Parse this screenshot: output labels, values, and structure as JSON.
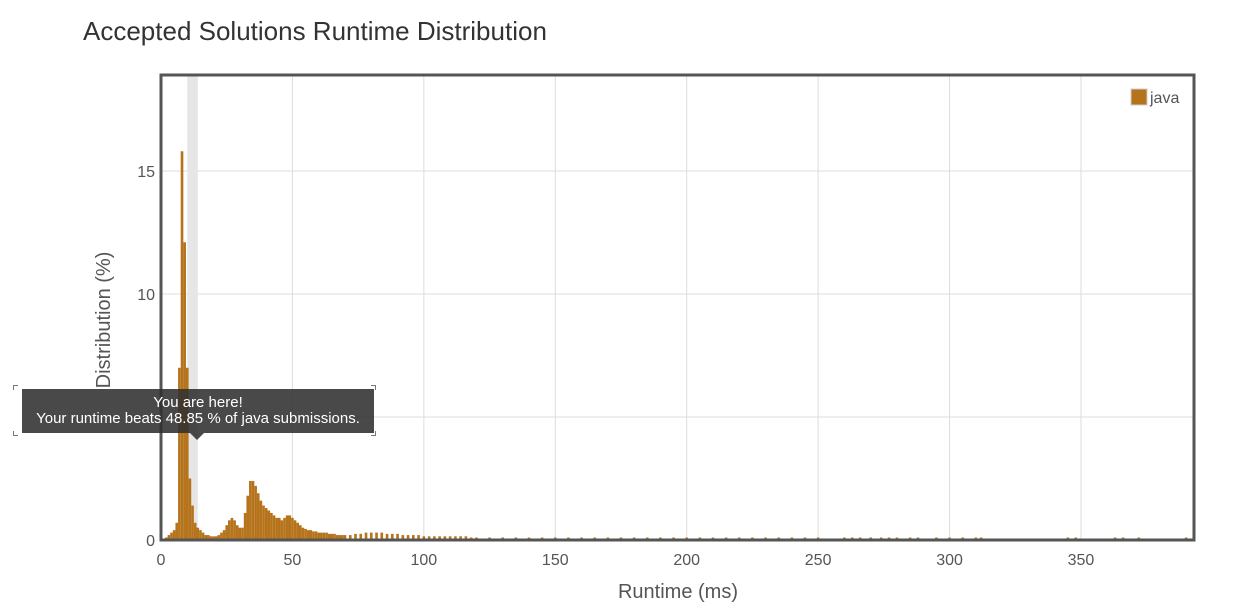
{
  "title": "Accepted Solutions Runtime Distribution",
  "tooltip": {
    "line1": "You are here!",
    "line2": "Your runtime beats 48.85 % of java submissions."
  },
  "colors": {
    "bar": "#b5731c",
    "highlight": "#e6e6e6",
    "grid": "#dddddd",
    "frame": "#555555"
  },
  "chart_data": {
    "type": "bar",
    "title": "Accepted Solutions Runtime Distribution",
    "xlabel": "Runtime (ms)",
    "ylabel": "Distribution (%)",
    "xlim": [
      0,
      393
    ],
    "ylim": [
      0,
      18.9
    ],
    "x_ticks": [
      0,
      50,
      100,
      150,
      200,
      250,
      300,
      350
    ],
    "y_ticks": [
      0,
      5,
      10,
      15
    ],
    "y_tick_labels": [
      "0",
      "",
      "10",
      "15"
    ],
    "grid": true,
    "legend": {
      "position": "top-right",
      "entries": [
        "java"
      ]
    },
    "highlight_range": [
      10,
      14
    ],
    "series": [
      {
        "name": "java",
        "x": [
          2,
          3,
          4,
          5,
          6,
          7,
          8,
          9,
          10,
          11,
          12,
          13,
          14,
          15,
          16,
          17,
          18,
          19,
          20,
          21,
          22,
          23,
          24,
          25,
          26,
          27,
          28,
          29,
          30,
          31,
          32,
          33,
          34,
          35,
          36,
          37,
          38,
          39,
          40,
          41,
          42,
          43,
          44,
          45,
          46,
          47,
          48,
          49,
          50,
          51,
          52,
          53,
          54,
          55,
          56,
          57,
          58,
          59,
          60,
          61,
          62,
          63,
          64,
          65,
          66,
          67,
          68,
          69,
          70,
          72,
          74,
          76,
          78,
          80,
          82,
          84,
          86,
          88,
          90,
          92,
          94,
          96,
          98,
          100,
          102,
          104,
          106,
          108,
          110,
          112,
          114,
          116,
          118,
          120,
          125,
          130,
          135,
          140,
          145,
          150,
          155,
          160,
          165,
          170,
          175,
          180,
          185,
          190,
          195,
          200,
          205,
          210,
          215,
          220,
          225,
          230,
          235,
          240,
          245,
          250,
          260,
          263,
          266,
          270,
          274,
          277,
          280,
          285,
          288,
          295,
          300,
          305,
          310,
          312,
          345,
          348,
          363,
          366,
          372,
          390,
          393
        ],
        "values": [
          0.1,
          0.2,
          0.3,
          0.4,
          0.7,
          7.0,
          15.8,
          12.1,
          7.0,
          2.5,
          1.4,
          0.7,
          0.5,
          0.4,
          0.3,
          0.2,
          0.2,
          0.15,
          0.15,
          0.15,
          0.2,
          0.3,
          0.4,
          0.6,
          0.8,
          0.9,
          0.8,
          0.6,
          0.5,
          0.5,
          1.1,
          1.8,
          2.4,
          2.4,
          2.2,
          1.9,
          1.6,
          1.4,
          1.3,
          1.2,
          1.1,
          1.0,
          0.9,
          0.9,
          0.8,
          0.9,
          1.0,
          1.0,
          0.9,
          0.8,
          0.7,
          0.6,
          0.5,
          0.45,
          0.4,
          0.4,
          0.35,
          0.35,
          0.3,
          0.3,
          0.3,
          0.3,
          0.25,
          0.25,
          0.25,
          0.2,
          0.2,
          0.2,
          0.2,
          0.2,
          0.25,
          0.25,
          0.3,
          0.3,
          0.3,
          0.3,
          0.25,
          0.25,
          0.25,
          0.2,
          0.2,
          0.2,
          0.2,
          0.15,
          0.15,
          0.15,
          0.15,
          0.15,
          0.15,
          0.15,
          0.15,
          0.15,
          0.1,
          0.1,
          0.1,
          0.1,
          0.1,
          0.1,
          0.1,
          0.1,
          0.1,
          0.1,
          0.1,
          0.1,
          0.1,
          0.1,
          0.1,
          0.1,
          0.1,
          0.1,
          0.1,
          0.1,
          0.1,
          0.1,
          0.1,
          0.1,
          0.1,
          0.1,
          0.1,
          0.1,
          0.1,
          0.1,
          0.1,
          0.1,
          0.1,
          0.1,
          0.1,
          0.1,
          0.1,
          0.1,
          0.1,
          0.1,
          0.1,
          0.1,
          0.1,
          0.1,
          0.1,
          0.1,
          0.1,
          0.1,
          0.1
        ]
      }
    ]
  }
}
